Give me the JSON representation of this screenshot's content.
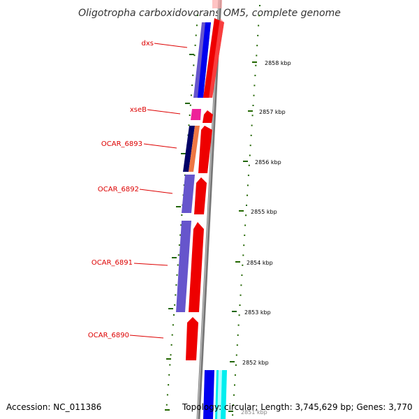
{
  "title": "Oligotropha carboxidovorans OM5, complete genome",
  "footer": {
    "accession": "Accession: NC_011386",
    "summary": "Topology: circular; Length: 3,745,629 bp; Genes: 3,770"
  },
  "genes": [
    {
      "label": "dxs"
    },
    {
      "label": "xseB"
    },
    {
      "label": "OCAR_6893"
    },
    {
      "label": "OCAR_6892"
    },
    {
      "label": "OCAR_6891"
    },
    {
      "label": "OCAR_6890"
    }
  ],
  "ticks": [
    {
      "label": "2858 kbp"
    },
    {
      "label": "2857 kbp"
    },
    {
      "label": "2856 kbp"
    },
    {
      "label": "2855 kbp"
    },
    {
      "label": "2854 kbp"
    },
    {
      "label": "2853 kbp"
    },
    {
      "label": "2852 kbp"
    },
    {
      "label": "2851 kbp"
    }
  ],
  "colors": {
    "gene_label": "#dd0000",
    "forward_cds": "#ee0000",
    "reverse_cds": "#6655cc",
    "dxs_reverse": "#0000ee",
    "xseB": "#ee2299",
    "backbone": "#888888",
    "tick": "#226600",
    "cyan_feature": "#00eeee"
  }
}
